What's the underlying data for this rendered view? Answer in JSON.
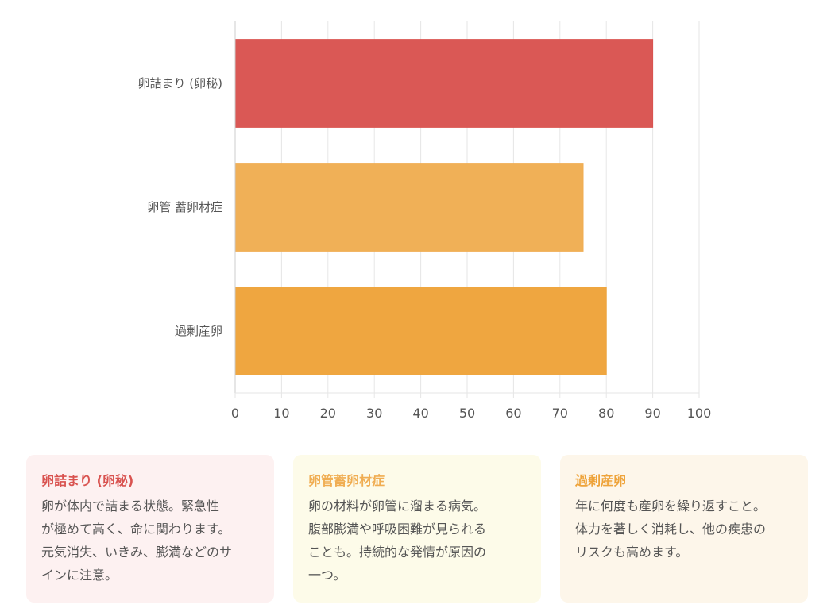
{
  "chart_data": {
    "type": "bar",
    "orientation": "horizontal",
    "categories": [
      "卵詰まり (卵秘)",
      "卵管 蓄卵材症",
      "過剰産卵"
    ],
    "values": [
      90,
      75,
      80
    ],
    "colors": [
      "#d95350",
      "#f0ad52",
      "#eea33a"
    ],
    "xlim": [
      0,
      100
    ],
    "xticks": [
      0,
      10,
      20,
      30,
      40,
      50,
      60,
      70,
      80,
      90,
      100
    ],
    "grid": true,
    "title": "",
    "xlabel": "",
    "ylabel": ""
  },
  "cards": [
    {
      "title": "卵詰まり (卵秘)",
      "lines": [
        "卵が体内で詰まる状態。緊急性",
        "が極めて高く、命に関わります。",
        "元気消失、いきみ、膨満などのサ",
        "インに注意。"
      ],
      "title_color": "#d95350",
      "bg_color": "#fdf1f1"
    },
    {
      "title": "卵管蓄卵材症",
      "lines": [
        "卵の材料が卵管に溜まる病気。",
        "腹部膨満や呼吸困難が見られる",
        "ことも。持続的な発情が原因の",
        "一つ。"
      ],
      "title_color": "#f0ad52",
      "bg_color": "#fdfbe9"
    },
    {
      "title": "過剰産卵",
      "lines": [
        "年に何度も産卵を繰り返すこと。",
        "体力を著しく消耗し、他の疾患の",
        "リスクも高めます。"
      ],
      "title_color": "#eea33a",
      "bg_color": "#fdf6ea"
    }
  ]
}
